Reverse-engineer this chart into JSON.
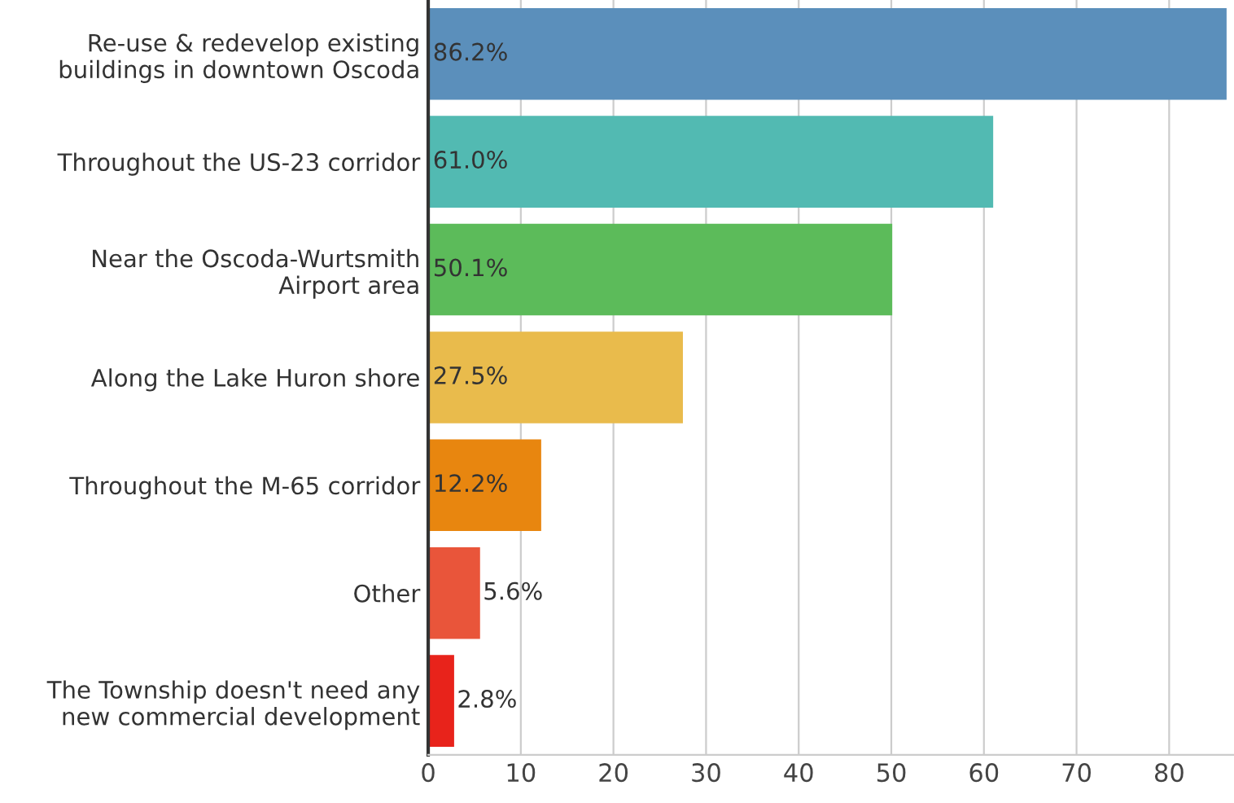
{
  "chart_data": {
    "type": "bar",
    "orientation": "horizontal",
    "categories": [
      "Re-use & redevelop existing\nbuildings in downtown Oscoda",
      "Throughout the US-23 corridor",
      "Near the Oscoda-Wurtsmith\nAirport area",
      "Along the Lake Huron shore",
      "Throughout the M-65 corridor",
      "Other",
      "The Township doesn't need any\nnew commercial development"
    ],
    "values": [
      86.2,
      61.0,
      50.1,
      27.5,
      12.2,
      5.6,
      2.8
    ],
    "colors": [
      "#5b8fbb",
      "#52bab2",
      "#5cbb5a",
      "#e9bb4c",
      "#e8860f",
      "#e9553a",
      "#e8231b"
    ],
    "value_labels": [
      "86.2%",
      "61.0%",
      "50.1%",
      "27.5%",
      "12.2%",
      "5.6%",
      "2.8%"
    ],
    "xlim": [
      0,
      87
    ],
    "xticks": [
      0,
      10,
      20,
      30,
      40,
      50,
      60,
      70,
      80
    ],
    "grid": "x"
  }
}
